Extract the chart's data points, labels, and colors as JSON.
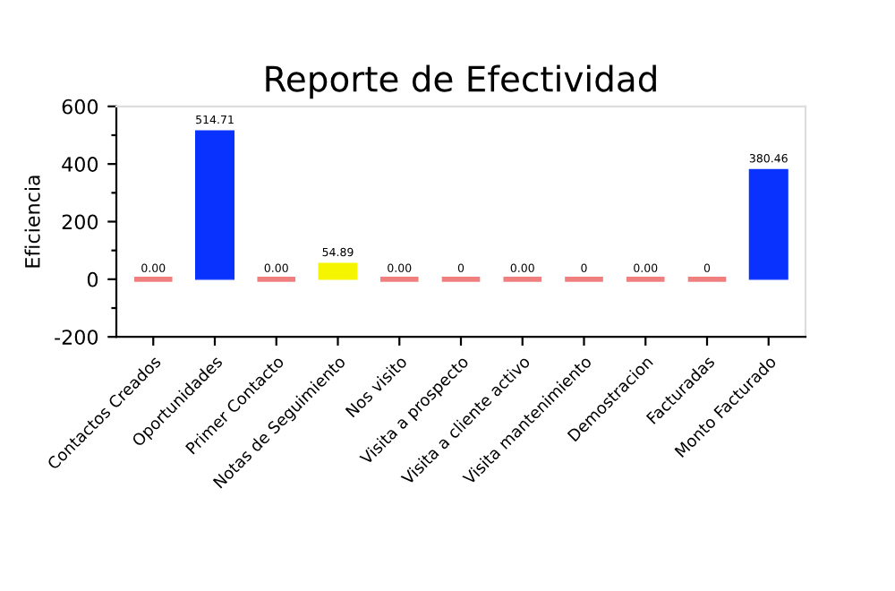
{
  "chart_data": {
    "type": "bar",
    "title": "Reporte de Efectividad",
    "ylabel": "Eficiencia",
    "categories": [
      "Contactos Creados",
      "Oportunidades",
      "Primer Contacto",
      "Notas de Seguimiento",
      "Nos visito",
      "Visita a prospecto",
      "Visita a cliente activo",
      "Visita mantenimiento",
      "Demostracion",
      "Facturadas",
      "Monto Facturado"
    ],
    "values": [
      0,
      514.71,
      0,
      54.89,
      0,
      0,
      0,
      0,
      0,
      0,
      380.46
    ],
    "colors": [
      "#f08080",
      "#0a32ff",
      "#f08080",
      "#f5f500",
      "#f08080",
      "#f08080",
      "#f08080",
      "#f08080",
      "#f08080",
      "#f08080",
      "#0a32ff"
    ],
    "value_labels": [
      "0.00",
      "514.71",
      "0.00",
      "54.89",
      "0.00",
      "0",
      "0.00",
      "0",
      "0.00",
      "0",
      "380.46"
    ],
    "ylim": [
      -200,
      600
    ],
    "yticks": [
      -200,
      {
        "value": -100,
        "label": null
      },
      0,
      {
        "value": 100,
        "label": null
      },
      200,
      {
        "value": 300,
        "label": null
      },
      400,
      {
        "value": 500,
        "label": null
      },
      600
    ],
    "grid": false,
    "legend": false
  }
}
